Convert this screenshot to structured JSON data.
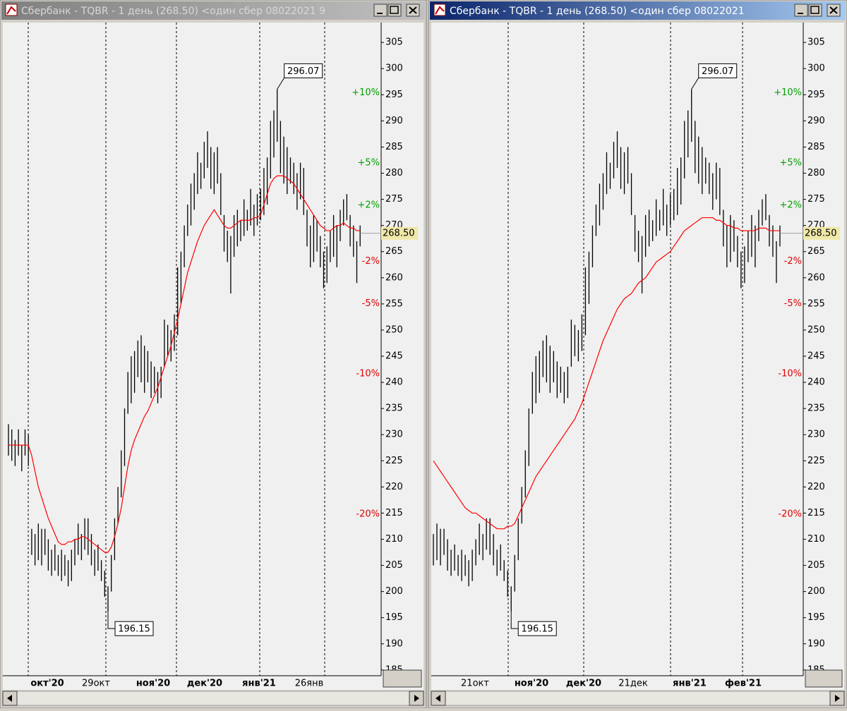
{
  "windows": [
    {
      "title": "Сбербанк - TQBR - 1 день (268.50) <один сбер 08022021 9",
      "chart": {
        "type": "range-bar",
        "ylim": [
          183.9,
          308.8
        ],
        "yticks": [
          185,
          190,
          195,
          200,
          205,
          210,
          215,
          220,
          225,
          230,
          235,
          240,
          245,
          250,
          255,
          260,
          265,
          270,
          275,
          280,
          285,
          290,
          295,
          300,
          305
        ],
        "percent_levels": [
          {
            "value": 10,
            "label": "+10%"
          },
          {
            "value": 5,
            "label": "+5%"
          },
          {
            "value": 2,
            "label": "+2%"
          },
          {
            "value": -2,
            "label": "-2%"
          },
          {
            "value": -5,
            "label": "-5%"
          },
          {
            "value": -10,
            "label": "-10%"
          },
          {
            "value": -20,
            "label": "-20%"
          }
        ],
        "up_color": "#00a000",
        "down_color": "#e00000",
        "bar_color": "#000000",
        "ma_color": "#ff0000",
        "price": {
          "value": 268.5,
          "label": "268.50"
        },
        "annotations": [
          296.07,
          196.15
        ],
        "x_labels": [
          "окт'20",
          "29окт",
          "ноя'20",
          "дек'20",
          "янв'21",
          "26янв"
        ],
        "bars": [
          [
            226,
            232
          ],
          [
            225,
            231
          ],
          [
            224,
            229
          ],
          [
            226,
            231
          ],
          [
            223,
            228
          ],
          [
            226,
            231
          ],
          [
            224,
            230
          ],
          [
            207,
            212
          ],
          [
            205,
            211
          ],
          [
            206,
            213
          ],
          [
            205,
            212
          ],
          [
            207,
            212
          ],
          [
            204,
            210
          ],
          [
            203,
            208
          ],
          [
            204,
            209
          ],
          [
            203,
            207
          ],
          [
            202,
            208
          ],
          [
            203,
            207
          ],
          [
            201,
            206
          ],
          [
            202,
            208
          ],
          [
            205,
            210
          ],
          [
            207,
            213
          ],
          [
            206,
            211
          ],
          [
            208,
            214
          ],
          [
            207,
            214
          ],
          [
            205,
            211
          ],
          [
            203,
            208
          ],
          [
            204,
            209
          ],
          [
            202,
            206
          ],
          [
            199,
            204
          ],
          [
            196.15,
            201
          ],
          [
            200,
            207
          ],
          [
            206,
            214
          ],
          [
            213,
            220
          ],
          [
            218,
            227
          ],
          [
            224,
            235
          ],
          [
            234,
            242
          ],
          [
            236,
            245
          ],
          [
            238,
            246
          ],
          [
            241,
            248
          ],
          [
            240,
            249
          ],
          [
            238,
            247
          ],
          [
            240,
            246
          ],
          [
            237,
            244
          ],
          [
            238,
            243
          ],
          [
            236,
            242
          ],
          [
            237,
            243
          ],
          [
            243,
            252
          ],
          [
            245,
            251
          ],
          [
            244,
            250
          ],
          [
            246,
            253
          ],
          [
            249,
            262
          ],
          [
            255,
            265
          ],
          [
            262,
            270
          ],
          [
            268,
            274
          ],
          [
            270,
            278
          ],
          [
            273,
            280
          ],
          [
            276,
            284
          ],
          [
            277,
            282
          ],
          [
            279,
            286
          ],
          [
            281,
            288
          ],
          [
            277,
            285
          ],
          [
            276,
            284
          ],
          [
            278,
            285
          ],
          [
            272,
            280
          ],
          [
            265,
            272
          ],
          [
            263,
            269
          ],
          [
            257,
            268
          ],
          [
            264,
            272
          ],
          [
            266,
            273
          ],
          [
            267,
            271
          ],
          [
            268,
            275
          ],
          [
            269,
            273
          ],
          [
            270,
            277
          ],
          [
            268,
            274
          ],
          [
            270,
            276
          ],
          [
            271,
            277
          ],
          [
            272,
            281
          ],
          [
            274,
            283
          ],
          [
            279,
            290
          ],
          [
            283,
            292
          ],
          [
            286,
            296.07
          ],
          [
            280,
            290
          ],
          [
            278,
            287
          ],
          [
            276,
            285
          ],
          [
            278,
            283
          ],
          [
            276,
            282
          ],
          [
            273,
            280
          ],
          [
            275,
            282
          ],
          [
            272,
            281
          ],
          [
            266,
            273
          ],
          [
            262,
            270
          ],
          [
            263,
            272
          ],
          [
            265,
            271
          ],
          [
            262,
            268
          ],
          [
            258,
            265
          ],
          [
            259,
            266
          ],
          [
            263,
            269
          ],
          [
            264,
            272
          ],
          [
            262,
            270
          ],
          [
            267,
            273
          ],
          [
            270,
            275
          ],
          [
            271,
            276
          ],
          [
            266,
            272
          ],
          [
            264,
            270
          ],
          [
            259,
            267
          ],
          [
            266,
            270
          ]
        ],
        "ma": [
          228,
          228,
          228,
          228,
          228,
          228,
          228,
          226,
          223,
          220,
          218,
          216,
          214,
          212.5,
          211,
          209.5,
          209,
          209,
          209.5,
          209.5,
          210,
          210,
          210.5,
          210.5,
          210,
          209.5,
          209,
          208.5,
          208,
          207.5,
          207.5,
          208.5,
          210.5,
          213,
          216,
          220,
          224,
          227,
          229,
          230.5,
          232,
          233.5,
          234.5,
          236,
          237.5,
          239,
          241,
          243,
          245,
          247,
          249.5,
          252,
          255,
          258,
          261,
          263,
          265,
          267,
          268.5,
          270,
          271,
          272,
          273,
          272,
          271,
          270,
          269.5,
          269.5,
          270,
          270.5,
          271,
          271,
          271,
          271,
          271.5,
          271.5,
          272,
          274,
          276,
          278,
          279,
          279.5,
          279.5,
          279.5,
          279,
          278.5,
          278,
          277,
          276,
          275,
          274,
          273,
          272,
          271,
          270,
          269.5,
          269,
          269,
          269.5,
          270,
          270,
          270.5,
          270,
          269.5,
          269.5,
          269,
          269
        ]
      }
    },
    {
      "title": "Сбербанк - TQBR - 1 день (268.50) <один сбер 08022021",
      "chart": {
        "type": "range-bar",
        "ylim": [
          183.9,
          308.8
        ],
        "yticks": [
          185,
          190,
          195,
          200,
          205,
          210,
          215,
          220,
          225,
          230,
          235,
          240,
          245,
          250,
          255,
          260,
          265,
          270,
          275,
          280,
          285,
          290,
          295,
          300,
          305
        ],
        "percent_levels": [
          {
            "value": 10,
            "label": "+10%"
          },
          {
            "value": 5,
            "label": "+5%"
          },
          {
            "value": 2,
            "label": "+2%"
          },
          {
            "value": -2,
            "label": "-2%"
          },
          {
            "value": -5,
            "label": "-5%"
          },
          {
            "value": -10,
            "label": "-10%"
          },
          {
            "value": -20,
            "label": "-20%"
          }
        ],
        "up_color": "#00a000",
        "down_color": "#e00000",
        "bar_color": "#000000",
        "ma_color": "#ff0000",
        "price": {
          "value": 268.5,
          "label": "268.50"
        },
        "annotations": [
          296.07,
          196.15
        ],
        "x_labels": [
          "21окт",
          "ноя'20",
          "дек'20",
          "21дек",
          "янв'21",
          "фев'21"
        ],
        "bars": [
          [
            205,
            211
          ],
          [
            206,
            213
          ],
          [
            205,
            212
          ],
          [
            207,
            212
          ],
          [
            204,
            210
          ],
          [
            203,
            208
          ],
          [
            204,
            209
          ],
          [
            203,
            207
          ],
          [
            202,
            208
          ],
          [
            203,
            207
          ],
          [
            201,
            206
          ],
          [
            202,
            208
          ],
          [
            205,
            210
          ],
          [
            207,
            213
          ],
          [
            206,
            211
          ],
          [
            208,
            214
          ],
          [
            207,
            214
          ],
          [
            205,
            211
          ],
          [
            203,
            208
          ],
          [
            204,
            209
          ],
          [
            202,
            206
          ],
          [
            199,
            204
          ],
          [
            196.15,
            201
          ],
          [
            200,
            207
          ],
          [
            206,
            214
          ],
          [
            213,
            220
          ],
          [
            218,
            227
          ],
          [
            224,
            235
          ],
          [
            234,
            242
          ],
          [
            236,
            245
          ],
          [
            238,
            246
          ],
          [
            241,
            248
          ],
          [
            240,
            249
          ],
          [
            238,
            247
          ],
          [
            240,
            246
          ],
          [
            237,
            244
          ],
          [
            238,
            243
          ],
          [
            236,
            242
          ],
          [
            237,
            243
          ],
          [
            243,
            252
          ],
          [
            245,
            251
          ],
          [
            244,
            250
          ],
          [
            246,
            253
          ],
          [
            249,
            262
          ],
          [
            255,
            265
          ],
          [
            262,
            270
          ],
          [
            268,
            274
          ],
          [
            270,
            278
          ],
          [
            273,
            280
          ],
          [
            276,
            284
          ],
          [
            277,
            282
          ],
          [
            279,
            286
          ],
          [
            281,
            288
          ],
          [
            277,
            285
          ],
          [
            276,
            284
          ],
          [
            278,
            285
          ],
          [
            272,
            280
          ],
          [
            265,
            272
          ],
          [
            263,
            269
          ],
          [
            257,
            268
          ],
          [
            264,
            272
          ],
          [
            266,
            273
          ],
          [
            267,
            271
          ],
          [
            268,
            275
          ],
          [
            269,
            273
          ],
          [
            270,
            277
          ],
          [
            268,
            274
          ],
          [
            270,
            276
          ],
          [
            271,
            277
          ],
          [
            272,
            281
          ],
          [
            274,
            283
          ],
          [
            279,
            290
          ],
          [
            283,
            292
          ],
          [
            286,
            296.07
          ],
          [
            280,
            290
          ],
          [
            278,
            287
          ],
          [
            276,
            285
          ],
          [
            278,
            283
          ],
          [
            276,
            282
          ],
          [
            273,
            280
          ],
          [
            275,
            282
          ],
          [
            272,
            281
          ],
          [
            266,
            273
          ],
          [
            262,
            270
          ],
          [
            263,
            272
          ],
          [
            265,
            271
          ],
          [
            262,
            268
          ],
          [
            258,
            265
          ],
          [
            259,
            266
          ],
          [
            263,
            269
          ],
          [
            264,
            272
          ],
          [
            262,
            270
          ],
          [
            267,
            273
          ],
          [
            270,
            275
          ],
          [
            271,
            276
          ],
          [
            266,
            272
          ],
          [
            264,
            270
          ],
          [
            259,
            267
          ],
          [
            266,
            270
          ]
        ],
        "ma": [
          225,
          224,
          223,
          222,
          221,
          220,
          219,
          218,
          217,
          216,
          215.5,
          215,
          215,
          214.5,
          214,
          213.5,
          213,
          212.5,
          212,
          212,
          212,
          212.5,
          212.5,
          213,
          214.5,
          216,
          217.5,
          219,
          220.5,
          222,
          223,
          224,
          225,
          226,
          227,
          228,
          229,
          230,
          231,
          232,
          233,
          234.5,
          236,
          238,
          240,
          242,
          244,
          246,
          248,
          249.5,
          251,
          252.5,
          254,
          255,
          256,
          256.5,
          257,
          258,
          259,
          259.5,
          260,
          261,
          262,
          263,
          263.5,
          264,
          264.5,
          265,
          266,
          267,
          268,
          269,
          269.5,
          270,
          270.5,
          271,
          271.5,
          271.5,
          271.5,
          271.5,
          271,
          271,
          270.5,
          270,
          270,
          269.5,
          269.5,
          269,
          269,
          269,
          269,
          269,
          269.5,
          269.5,
          269.5,
          269,
          269,
          269,
          269
        ]
      }
    }
  ]
}
